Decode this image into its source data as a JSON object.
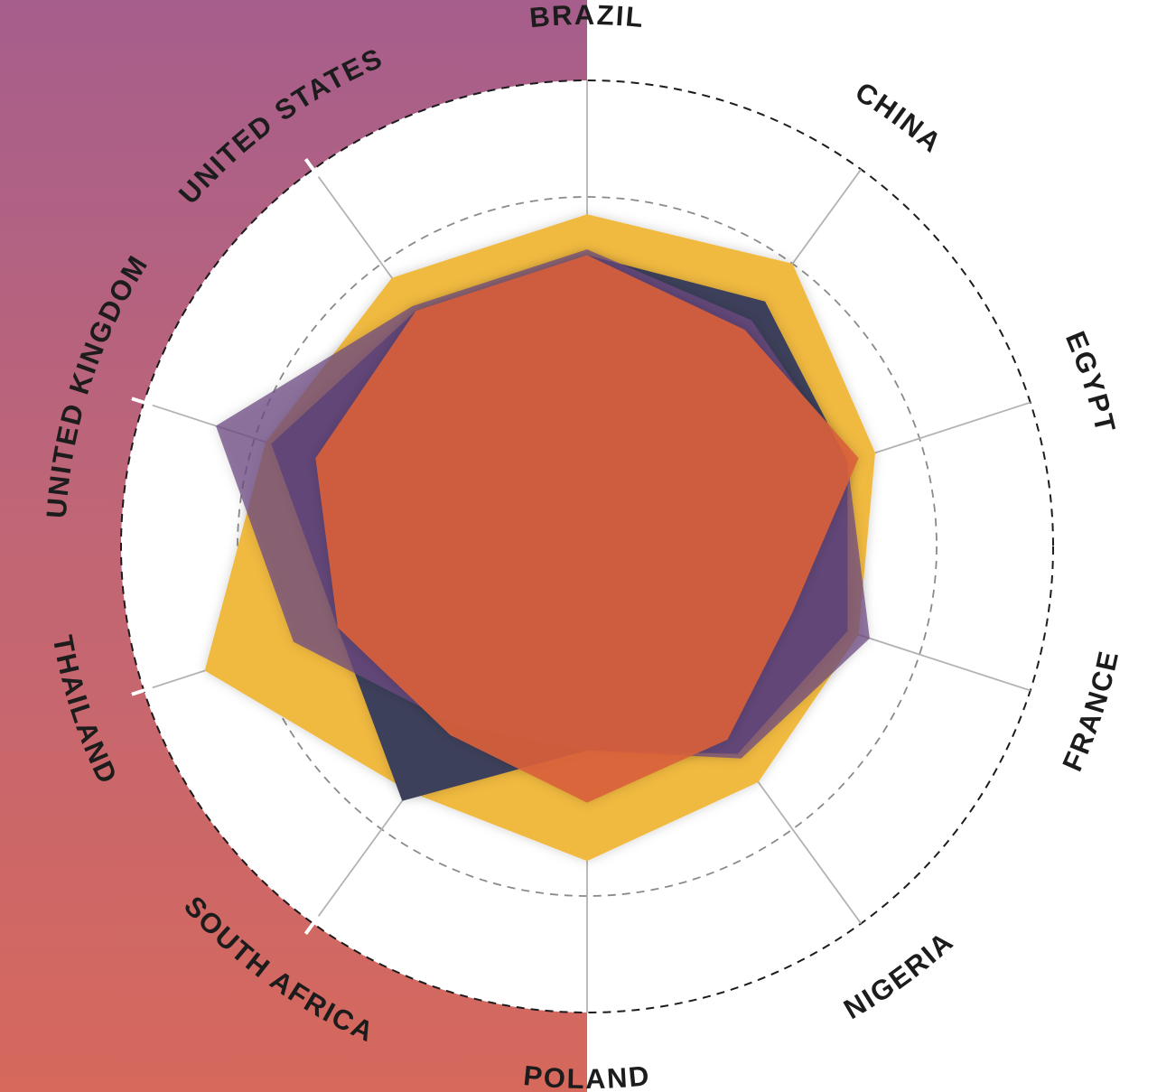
{
  "chart_data": {
    "type": "radar",
    "title": "",
    "axes": [
      "BRAZIL",
      "CHINA",
      "EGYPT",
      "FRANCE",
      "NIGERIA",
      "POLAND",
      "SOUTH AFRICA",
      "THAILAND",
      "UNITED KINGDOM",
      "UNITED STATES"
    ],
    "range": [
      0,
      4
    ],
    "grid": true,
    "legend": "none",
    "series": [
      {
        "color": "#f0b941",
        "opacity": 1.0,
        "values": [
          2.85,
          3.0,
          2.6,
          2.45,
          2.5,
          2.7,
          2.6,
          3.45,
          2.9,
          2.85
        ]
      },
      {
        "color": "#3c3f5a",
        "opacity": 1.0,
        "values": [
          2.5,
          2.6,
          2.35,
          2.35,
          2.2,
          1.75,
          2.7,
          2.25,
          2.85,
          2.5
        ]
      },
      {
        "color": "#6d4a82",
        "opacity": 0.75,
        "values": [
          2.55,
          2.4,
          2.35,
          2.55,
          2.25,
          1.75,
          1.9,
          2.65,
          3.35,
          2.55
        ]
      },
      {
        "color": "#d9603a",
        "opacity": 0.9,
        "values": [
          2.5,
          2.3,
          2.45,
          1.85,
          2.05,
          2.2,
          2.0,
          2.25,
          2.45,
          2.5
        ]
      }
    ]
  }
}
